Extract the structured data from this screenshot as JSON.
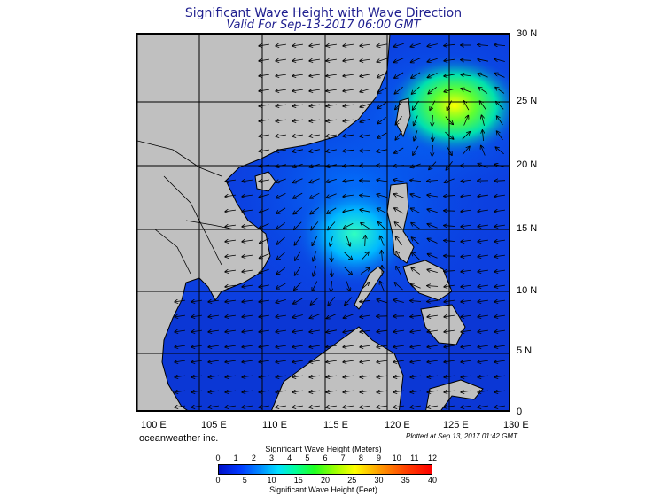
{
  "title": "Significant Wave Height with Wave Direction",
  "subtitle": "Valid For Sep-13-2017 06:00 GMT",
  "lat_labels": [
    "30 N",
    "25 N",
    "20 N",
    "15 N",
    "10 N",
    "5 N",
    "0"
  ],
  "lon_labels": [
    "100 E",
    "105 E",
    "110 E",
    "115 E",
    "120 E",
    "125 E",
    "130 E"
  ],
  "branding": "oceanweather inc.",
  "plotted_note": "Plotted at Sep 13, 2017 01:42 GMT",
  "colorbar": {
    "top_title": "Significant Wave Height (Meters)",
    "top_ticks": [
      "0",
      "1",
      "2",
      "3",
      "4",
      "5",
      "6",
      "7",
      "8",
      "9",
      "10",
      "11",
      "12"
    ],
    "bottom_ticks": [
      "0",
      "5",
      "10",
      "15",
      "20",
      "25",
      "30",
      "35",
      "40"
    ],
    "bottom_title": "Significant Wave Height (Feet)"
  },
  "colors": {
    "land": "#c0c0c0",
    "ocean_low": "#0c3fe0",
    "ocean_mid": "#00c8ff",
    "peak": "#ffff00",
    "grid": "#000000"
  }
}
